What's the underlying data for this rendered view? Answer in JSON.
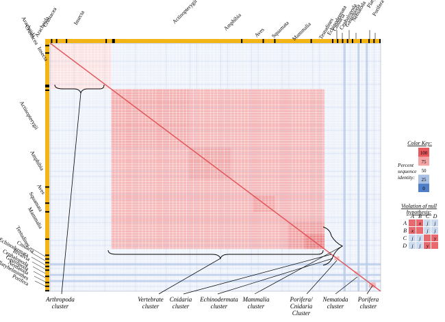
{
  "chart_data": {
    "type": "heatmap",
    "description_free": true,
    "top_bar_labels": [
      "Arachnida",
      "Crustacea",
      "Insecta",
      "Actinopterygii",
      "Amphibia",
      "Aves",
      "Squamata",
      "Mammalia",
      "Testudines",
      "Echinodermata",
      "Cnidaria",
      "Cephalopoda",
      "Gastropoda",
      "Nematoda",
      "Platyhelminthes",
      "Porifera"
    ],
    "left_bar_labels": [
      "Arachnida",
      "Crustacea",
      "Insecta",
      "Actinopterygii",
      "Amphibia",
      "Aves",
      "Squamata",
      "Mammalia",
      "Testudines",
      "Cnidaria",
      "Echinodermata",
      "Bivalvia",
      "Cephalopoda",
      "Gastropoda",
      "Nematoda",
      "Platyhelminthes",
      "Porifera"
    ],
    "clusters": [
      {
        "label": "Arthropoda cluster",
        "line1": "Arthropoda",
        "line2": "cluster"
      },
      {
        "label": "Vertebrate cluster",
        "line1": "Vertebrate",
        "line2": "cluster"
      },
      {
        "label": "Cnidaria cluster",
        "line1": "Cnidaria",
        "line2": "cluster"
      },
      {
        "label": "Echinodermata cluster",
        "line1": "Echinodermata",
        "line2": "cluster"
      },
      {
        "label": "Mammalia cluster",
        "line1": "Mammalia",
        "line2": "cluster"
      },
      {
        "label": "Porifera/ Cnidaria Cluster",
        "line1": "Porifera/",
        "line2": "Cnidaria",
        "line3": "Cluster"
      },
      {
        "label": "Nematoda cluster",
        "line1": "Nematoda",
        "line2": "cluster"
      },
      {
        "label": "Porifera cluster",
        "line1": "Porifera",
        "line2": "cluster"
      }
    ],
    "color_key": {
      "title": "Color Key:",
      "axis_label_lines": [
        "Percent",
        "sequence",
        "identity:"
      ],
      "ticks": [
        100,
        75,
        50,
        25,
        0
      ],
      "colors": [
        "#e8585c",
        "#f3a4a4",
        "#ffffff",
        "#a9c1e4",
        "#4f7fc8"
      ]
    },
    "violation_key": {
      "title_lines": [
        "Violation of null",
        "hypothesis:"
      ],
      "columns": [
        "A",
        "B",
        "C",
        "D"
      ],
      "rows": [
        "A",
        "B",
        "C",
        "D"
      ],
      "cells": [
        [
          "",
          "x",
          "j",
          "j"
        ],
        [
          "x",
          "",
          "j",
          "j"
        ],
        [
          "j",
          "j",
          "",
          "y"
        ],
        [
          "j",
          "j",
          "y",
          ""
        ]
      ]
    },
    "colors": {
      "bar": "#f2b515",
      "high": "#e8585c",
      "mid": "#f3a4a4",
      "low": "#ffffff",
      "neg": "#4f7fc8"
    }
  }
}
